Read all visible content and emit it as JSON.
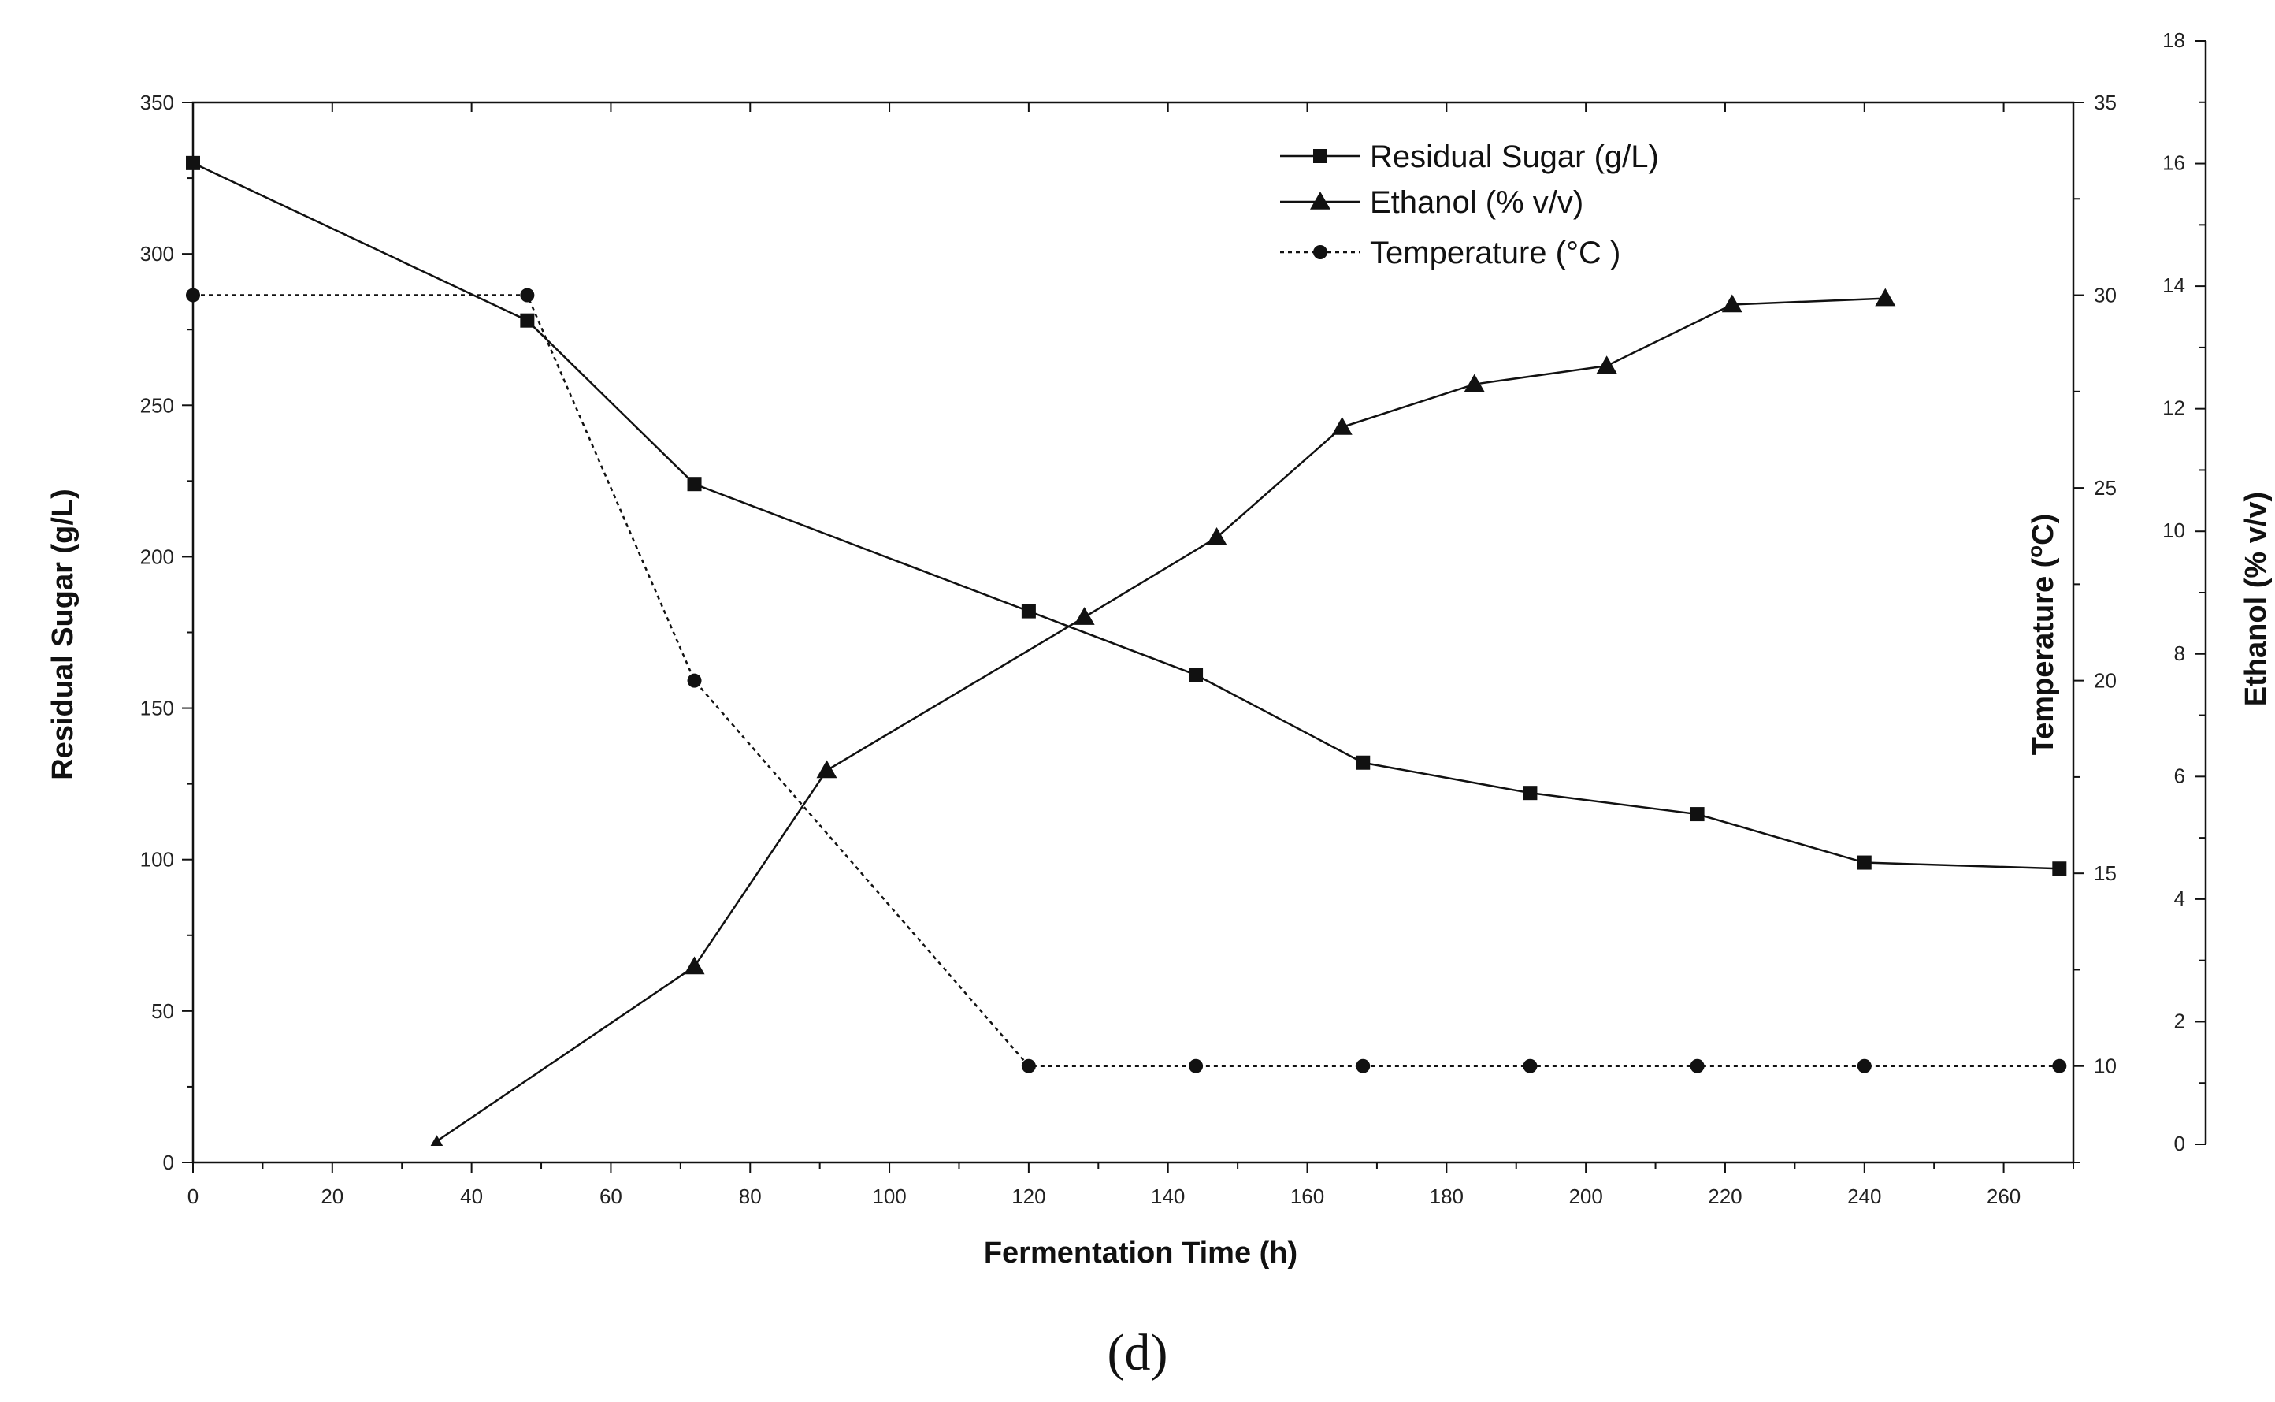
{
  "chart_data": {
    "type": "line",
    "caption": "(d)",
    "xlabel": "Fermentation Time (h)",
    "xlim": [
      0,
      270
    ],
    "xticks": [
      0,
      20,
      40,
      60,
      80,
      100,
      120,
      140,
      160,
      180,
      200,
      220,
      240,
      260
    ],
    "axes": {
      "left": {
        "label": "Residual Sugar (g/L)",
        "lim": [
          0,
          350
        ],
        "ticks": [
          0,
          50,
          100,
          150,
          200,
          250,
          300,
          350
        ]
      },
      "temp": {
        "label": "Temperature (°C)",
        "label_main": "Temperature (",
        "label_sup": "o",
        "label_end": "C)",
        "lim": [
          7.5,
          35
        ],
        "ticks": [
          10,
          15,
          20,
          25,
          30,
          35
        ]
      },
      "ethanol": {
        "label": "Ethanol (% v/v)",
        "lim": [
          0,
          18
        ],
        "ticks": [
          0,
          2,
          4,
          6,
          8,
          10,
          12,
          14,
          16,
          18
        ]
      }
    },
    "series": [
      {
        "name": "Residual Sugar (g/L)",
        "axis": "left",
        "marker": "square",
        "dash": "solid",
        "x": [
          0,
          48,
          72,
          120,
          144,
          168,
          192,
          216,
          240,
          268
        ],
        "y": [
          330,
          278,
          224,
          182,
          161,
          132,
          122,
          115,
          99,
          97
        ]
      },
      {
        "name": "Ethanol (% v/v)",
        "axis": "ethanol",
        "marker": "triangle",
        "dash": "solid",
        "x": [
          35,
          72,
          91,
          128,
          147,
          165,
          184,
          203,
          221,
          243
        ],
        "y": [
          0.05,
          2.9,
          6.1,
          8.6,
          9.9,
          11.7,
          12.4,
          12.7,
          13.7,
          13.8
        ]
      },
      {
        "name": "Temperature (°C)",
        "legend_name": "Temperature (°C )",
        "axis": "temp",
        "marker": "circle",
        "dash": "dotted",
        "x": [
          0,
          48,
          72,
          120,
          144,
          168,
          192,
          216,
          240,
          268
        ],
        "y": [
          30,
          30,
          20,
          10,
          10,
          10,
          10,
          10,
          10,
          10
        ]
      }
    ],
    "legend": {
      "placement": "top-right"
    },
    "grid": false
  }
}
